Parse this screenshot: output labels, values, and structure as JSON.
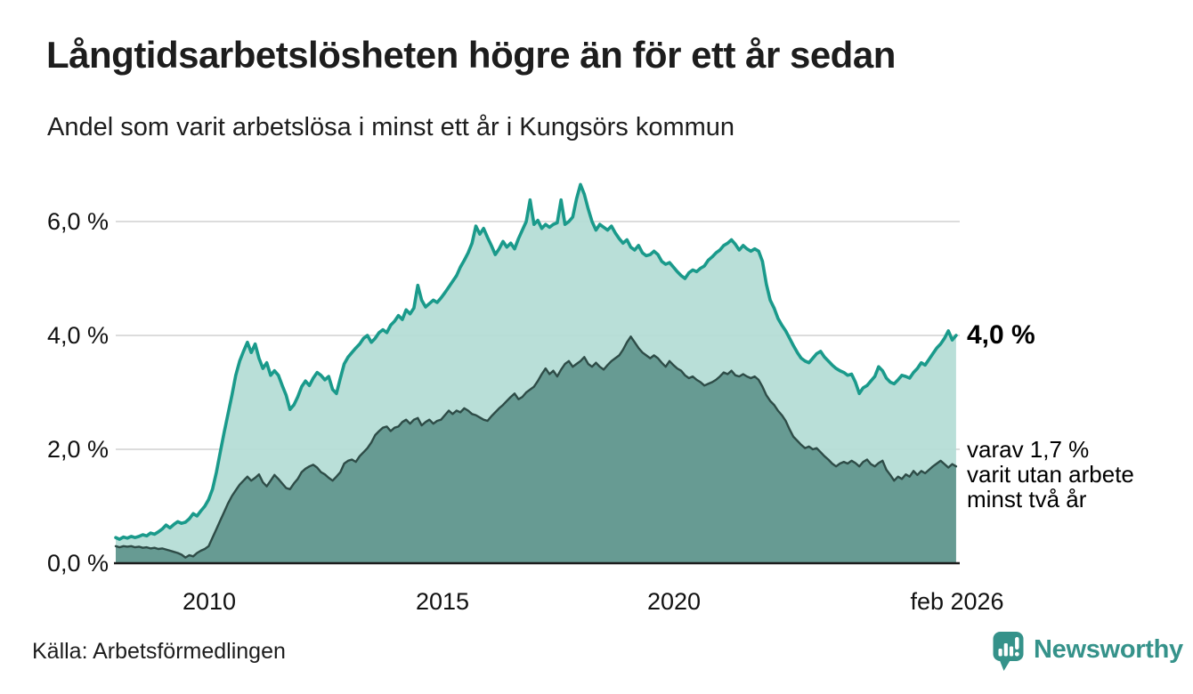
{
  "title": "Långtidsarbetslösheten högre än för ett år sedan",
  "subtitle": "Andel som varit arbetslösa i minst ett år i Kungsörs kommun",
  "source": "Källa: Arbetsförmedlingen",
  "branding": {
    "wordmark": "Newsworthy"
  },
  "colors": {
    "accent_teal": "#1a9a8b",
    "area_light": "#b3dcd5",
    "area_dark": "#5e938c",
    "line_dark": "#2e4c47",
    "gridline": "#dcdcdc",
    "axis_line": "#1c1c1c",
    "text": "#1d1d1d",
    "logo_teal": "#35928a"
  },
  "chart_data": {
    "type": "area",
    "title": "Långtidsarbetslösheten högre än för ett år sedan",
    "subtitle": "Andel som varit arbetslösa i minst ett år i Kungsörs kommun",
    "unit": "%",
    "grid": "horizontal",
    "legend_position": "right-annotations",
    "xlim": [
      2008.0,
      2026.083
    ],
    "ylim": [
      0,
      6.9
    ],
    "x_ticks": [
      {
        "label": "2010",
        "t": 2010.0
      },
      {
        "label": "2015",
        "t": 2015.0
      },
      {
        "label": "2020",
        "t": 2020.0
      },
      {
        "label": "feb 2026",
        "t": 2026.083
      }
    ],
    "y_ticks": [
      {
        "label": "6,0 %",
        "v": 6
      },
      {
        "label": "4,0 %",
        "v": 4
      },
      {
        "label": "2,0 %",
        "v": 2
      },
      {
        "label": "0,0 %",
        "v": 0
      }
    ],
    "x_start": 2008.0,
    "x_step_years": 0.0833333,
    "series": [
      {
        "id": "andel-arbetslosa-minst-ett-ar",
        "line_color": "#1a9a8b",
        "fill_color": "#b3dcd5",
        "line_width": 3.6,
        "end_label": "4,0 %",
        "end_value": 4.0,
        "values": [
          0.45,
          0.42,
          0.46,
          0.44,
          0.47,
          0.45,
          0.47,
          0.5,
          0.48,
          0.53,
          0.51,
          0.55,
          0.6,
          0.67,
          0.62,
          0.68,
          0.73,
          0.7,
          0.72,
          0.78,
          0.87,
          0.83,
          0.92,
          1.0,
          1.12,
          1.3,
          1.6,
          1.95,
          2.3,
          2.62,
          2.95,
          3.3,
          3.55,
          3.72,
          3.88,
          3.7,
          3.85,
          3.6,
          3.42,
          3.52,
          3.3,
          3.38,
          3.3,
          3.12,
          2.95,
          2.7,
          2.78,
          2.92,
          3.1,
          3.2,
          3.12,
          3.25,
          3.35,
          3.3,
          3.22,
          3.28,
          3.05,
          2.98,
          3.25,
          3.5,
          3.62,
          3.7,
          3.78,
          3.85,
          3.95,
          4.0,
          3.88,
          3.95,
          4.05,
          4.1,
          4.05,
          4.18,
          4.25,
          4.35,
          4.28,
          4.45,
          4.38,
          4.48,
          4.88,
          4.62,
          4.5,
          4.56,
          4.62,
          4.58,
          4.66,
          4.75,
          4.85,
          4.95,
          5.05,
          5.2,
          5.32,
          5.45,
          5.62,
          5.92,
          5.78,
          5.88,
          5.72,
          5.58,
          5.42,
          5.52,
          5.65,
          5.55,
          5.62,
          5.52,
          5.7,
          5.85,
          6.0,
          6.38,
          5.95,
          6.02,
          5.88,
          5.95,
          5.9,
          5.95,
          5.98,
          6.38,
          5.95,
          6.0,
          6.08,
          6.4,
          6.65,
          6.48,
          6.22,
          6.0,
          5.85,
          5.95,
          5.9,
          5.85,
          5.92,
          5.8,
          5.7,
          5.62,
          5.68,
          5.55,
          5.5,
          5.58,
          5.45,
          5.4,
          5.42,
          5.48,
          5.42,
          5.3,
          5.25,
          5.28,
          5.2,
          5.12,
          5.05,
          5.0,
          5.1,
          5.15,
          5.12,
          5.18,
          5.22,
          5.32,
          5.38,
          5.45,
          5.5,
          5.58,
          5.62,
          5.68,
          5.6,
          5.5,
          5.58,
          5.52,
          5.48,
          5.52,
          5.48,
          5.3,
          4.9,
          4.62,
          4.48,
          4.3,
          4.18,
          4.08,
          3.95,
          3.82,
          3.7,
          3.6,
          3.55,
          3.52,
          3.6,
          3.68,
          3.72,
          3.62,
          3.55,
          3.48,
          3.42,
          3.38,
          3.35,
          3.3,
          3.32,
          3.18,
          2.98,
          3.08,
          3.12,
          3.2,
          3.28,
          3.45,
          3.38,
          3.25,
          3.18,
          3.15,
          3.22,
          3.3,
          3.28,
          3.25,
          3.35,
          3.42,
          3.52,
          3.48,
          3.58,
          3.68,
          3.78,
          3.85,
          3.95,
          4.08,
          3.92,
          4.0
        ]
      },
      {
        "id": "andel-arbetslosa-minst-tva-ar",
        "line_color": "#2e4c47",
        "fill_color": "#5e938c",
        "line_width": 2.4,
        "end_label_lines": [
          "varav 1,7 %",
          "varit utan arbete",
          "minst två år"
        ],
        "end_value": 1.7,
        "values": [
          0.3,
          0.28,
          0.3,
          0.29,
          0.3,
          0.28,
          0.29,
          0.27,
          0.28,
          0.26,
          0.27,
          0.25,
          0.26,
          0.24,
          0.22,
          0.2,
          0.18,
          0.15,
          0.1,
          0.14,
          0.12,
          0.18,
          0.22,
          0.25,
          0.3,
          0.45,
          0.6,
          0.75,
          0.9,
          1.05,
          1.18,
          1.28,
          1.38,
          1.45,
          1.52,
          1.45,
          1.5,
          1.56,
          1.42,
          1.35,
          1.45,
          1.55,
          1.48,
          1.4,
          1.32,
          1.3,
          1.4,
          1.48,
          1.6,
          1.66,
          1.7,
          1.73,
          1.68,
          1.6,
          1.56,
          1.5,
          1.45,
          1.52,
          1.6,
          1.75,
          1.8,
          1.82,
          1.78,
          1.88,
          1.95,
          2.02,
          2.12,
          2.25,
          2.32,
          2.38,
          2.4,
          2.32,
          2.38,
          2.4,
          2.48,
          2.52,
          2.45,
          2.52,
          2.55,
          2.42,
          2.48,
          2.52,
          2.45,
          2.5,
          2.52,
          2.6,
          2.68,
          2.62,
          2.68,
          2.65,
          2.72,
          2.68,
          2.62,
          2.6,
          2.56,
          2.52,
          2.5,
          2.58,
          2.65,
          2.72,
          2.78,
          2.85,
          2.92,
          2.98,
          2.88,
          2.92,
          3.0,
          3.05,
          3.1,
          3.2,
          3.32,
          3.42,
          3.32,
          3.38,
          3.28,
          3.4,
          3.5,
          3.55,
          3.45,
          3.5,
          3.55,
          3.62,
          3.5,
          3.45,
          3.52,
          3.45,
          3.4,
          3.48,
          3.55,
          3.6,
          3.65,
          3.75,
          3.88,
          3.98,
          3.88,
          3.78,
          3.7,
          3.65,
          3.6,
          3.65,
          3.6,
          3.52,
          3.45,
          3.55,
          3.48,
          3.42,
          3.38,
          3.3,
          3.25,
          3.28,
          3.22,
          3.18,
          3.12,
          3.15,
          3.18,
          3.22,
          3.28,
          3.35,
          3.32,
          3.38,
          3.3,
          3.28,
          3.32,
          3.28,
          3.25,
          3.28,
          3.22,
          3.1,
          2.95,
          2.85,
          2.78,
          2.68,
          2.6,
          2.5,
          2.35,
          2.22,
          2.15,
          2.08,
          2.02,
          2.05,
          2.0,
          2.02,
          1.95,
          1.88,
          1.82,
          1.75,
          1.7,
          1.75,
          1.78,
          1.75,
          1.8,
          1.76,
          1.7,
          1.78,
          1.82,
          1.74,
          1.7,
          1.76,
          1.8,
          1.64,
          1.55,
          1.45,
          1.52,
          1.48,
          1.56,
          1.52,
          1.62,
          1.55,
          1.62,
          1.58,
          1.64,
          1.7,
          1.75,
          1.8,
          1.74,
          1.68,
          1.74,
          1.7
        ]
      }
    ]
  }
}
